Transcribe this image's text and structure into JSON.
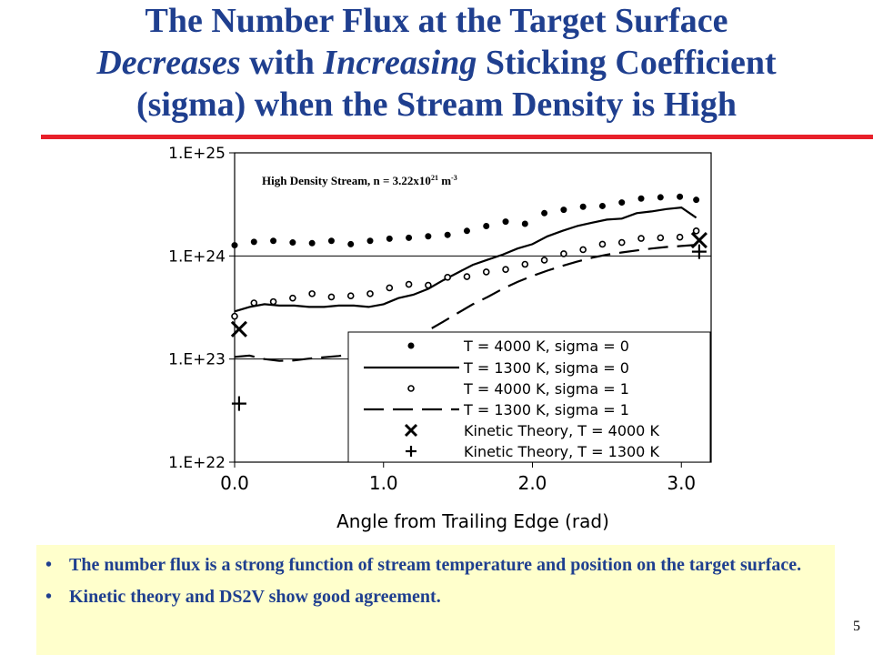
{
  "slide": {
    "title_line1": "The Number Flux at the Target Surface",
    "title_line2_part1": "Decreases",
    "title_line2_part2": " with ",
    "title_line2_part3": "Increasing",
    "title_line2_part4": " Sticking Coefficient",
    "title_line3": "(sigma) when the Stream Density is High",
    "page_number": "5"
  },
  "bullets": [
    "The number flux is a strong function of stream temperature and position on the target surface.",
    "Kinetic theory and DS2V show good agreement."
  ],
  "colors": {
    "title": "#1f3f8f",
    "rule": "#e8202a",
    "bullet_box": "#ffffcc",
    "series": "#000000"
  },
  "chart_data": {
    "type": "line",
    "annotation": "High Density Stream,  n = 3.22x10",
    "annotation_exponent": "21",
    "annotation_unit": " m",
    "annotation_unit_exponent": "-3",
    "xlabel": "Angle from Trailing Edge (rad)",
    "ylabel": "",
    "xlim": [
      0.0,
      3.2
    ],
    "ylim": [
      1e+22,
      1e+25
    ],
    "yscale": "log",
    "x_ticks": [
      0.0,
      1.0,
      2.0,
      3.0
    ],
    "x_tick_labels": [
      "0.0",
      "1.0",
      "2.0",
      "3.0"
    ],
    "y_ticks": [
      1e+22,
      1e+23,
      1e+24,
      1e+25
    ],
    "y_tick_labels": [
      "1.E+22",
      "1.E+23",
      "1.E+24",
      "1.E+25"
    ],
    "grid": "horizontal",
    "legend_position": "bottom-right",
    "series": [
      {
        "name": "T = 4000 K, sigma = 0",
        "style": "filled-dot",
        "x": [
          0.0,
          0.13,
          0.26,
          0.39,
          0.52,
          0.65,
          0.78,
          0.91,
          1.04,
          1.17,
          1.3,
          1.43,
          1.56,
          1.69,
          1.82,
          1.95,
          2.08,
          2.21,
          2.34,
          2.47,
          2.6,
          2.73,
          2.86,
          2.99,
          3.1
        ],
        "y": [
          1.27e+24,
          1.37e+24,
          1.4e+24,
          1.35e+24,
          1.33e+24,
          1.4e+24,
          1.3e+24,
          1.4e+24,
          1.47e+24,
          1.5e+24,
          1.55e+24,
          1.6e+24,
          1.75e+24,
          1.95e+24,
          2.15e+24,
          2.05e+24,
          2.6e+24,
          2.8e+24,
          3e+24,
          3.05e+24,
          3.3e+24,
          3.6e+24,
          3.7e+24,
          3.75e+24,
          3.5e+24
        ]
      },
      {
        "name": "T = 1300 K, sigma = 0",
        "style": "solid",
        "x": [
          0.0,
          0.1,
          0.2,
          0.3,
          0.4,
          0.5,
          0.6,
          0.7,
          0.8,
          0.9,
          1.0,
          1.1,
          1.2,
          1.3,
          1.4,
          1.5,
          1.6,
          1.7,
          1.8,
          1.9,
          2.0,
          2.1,
          2.2,
          2.3,
          2.4,
          2.5,
          2.6,
          2.7,
          2.8,
          2.9,
          3.0,
          3.1
        ],
        "y": [
          2.9e+23,
          3.2e+23,
          3.4e+23,
          3.3e+23,
          3.3e+23,
          3.2e+23,
          3.2e+23,
          3.3e+23,
          3.3e+23,
          3.2e+23,
          3.4e+23,
          3.9e+23,
          4.2e+23,
          4.8e+23,
          5.8e+23,
          6.9e+23,
          8.2e+23,
          9.2e+23,
          1.03e+24,
          1.18e+24,
          1.3e+24,
          1.55e+24,
          1.75e+24,
          1.95e+24,
          2.1e+24,
          2.25e+24,
          2.3e+24,
          2.6e+24,
          2.7e+24,
          2.85e+24,
          2.95e+24,
          2.35e+24
        ]
      },
      {
        "name": "T = 4000 K, sigma = 1",
        "style": "open-dot",
        "x": [
          0.0,
          0.13,
          0.26,
          0.39,
          0.52,
          0.65,
          0.78,
          0.91,
          1.04,
          1.17,
          1.3,
          1.43,
          1.56,
          1.69,
          1.82,
          1.95,
          2.08,
          2.21,
          2.34,
          2.47,
          2.6,
          2.73,
          2.86,
          2.99,
          3.1
        ],
        "y": [
          2.6e+23,
          3.5e+23,
          3.6e+23,
          3.9e+23,
          4.3e+23,
          4e+23,
          4.1e+23,
          4.3e+23,
          4.9e+23,
          5.3e+23,
          5.2e+23,
          6.2e+23,
          6.3e+23,
          7e+23,
          7.4e+23,
          8.3e+23,
          9.1e+23,
          1.05e+24,
          1.15e+24,
          1.3e+24,
          1.35e+24,
          1.48e+24,
          1.5e+24,
          1.52e+24,
          1.75e+24
        ]
      },
      {
        "name": "T = 1300 K, sigma = 1",
        "style": "dashed",
        "x": [
          0.0,
          0.1,
          0.2,
          0.3,
          0.4,
          0.5,
          0.6,
          0.7,
          0.8,
          0.9,
          1.0,
          1.1,
          1.2,
          1.3,
          1.4,
          1.5,
          1.6,
          1.7,
          1.8,
          1.9,
          2.0,
          2.1,
          2.2,
          2.3,
          2.4,
          2.5,
          2.6,
          2.7,
          2.8,
          2.9,
          3.0,
          3.1
        ],
        "y": [
          1.05e+23,
          1.08e+23,
          1e+23,
          9.6e+22,
          9.7e+22,
          1.01e+23,
          1.04e+23,
          1.07e+23,
          1.12e+23,
          1.16e+23,
          1.2e+23,
          1.3e+23,
          1.55e+23,
          1.9e+23,
          2.3e+23,
          2.8e+23,
          3.4e+23,
          4e+23,
          4.8e+23,
          5.6e+23,
          6.4e+23,
          7.2e+23,
          8e+23,
          8.8e+23,
          9.6e+23,
          1.03e+24,
          1.08e+24,
          1.13e+24,
          1.18e+24,
          1.22e+24,
          1.25e+24,
          1.28e+24
        ]
      },
      {
        "name": "Kinetic Theory, T = 4000 K",
        "style": "x-marker",
        "x": [
          0.03,
          3.12
        ],
        "y": [
          1.95e+23,
          1.42e+24
        ]
      },
      {
        "name": "Kinetic Theory, T = 1300 K",
        "style": "plus-marker",
        "x": [
          0.03,
          3.12
        ],
        "y": [
          3.7e+22,
          1.1e+24
        ]
      }
    ]
  }
}
